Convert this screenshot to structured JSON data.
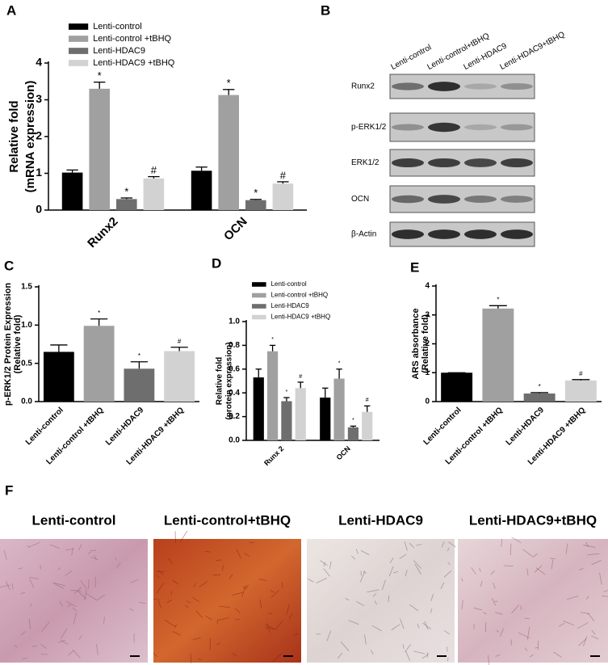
{
  "panel_labels": [
    "A",
    "B",
    "C",
    "D",
    "E",
    "F"
  ],
  "chart_data": [
    {
      "type": "bar",
      "y_label": [
        "Relative fold",
        "(mRNA expression)"
      ],
      "categories": [
        "Runx2",
        "OCN"
      ],
      "series": [
        {
          "name": "Lenti-control",
          "color": "#000000",
          "values": [
            1.02,
            1.07
          ],
          "errors": [
            0.07,
            0.1
          ],
          "annotations": [
            null,
            null
          ]
        },
        {
          "name": "Lenti-control +tBHQ",
          "color": "#a0a0a0",
          "values": [
            3.3,
            3.13
          ],
          "errors": [
            0.18,
            0.15
          ],
          "annotations": [
            "*",
            "*"
          ]
        },
        {
          "name": "Lenti-HDAC9",
          "color": "#6e6e6e",
          "values": [
            0.3,
            0.27
          ],
          "errors": [
            0.03,
            0.02
          ],
          "annotations": [
            "*",
            "*"
          ]
        },
        {
          "name": "Lenti-HDAC9 +tBHQ",
          "color": "#d2d2d2",
          "values": [
            0.86,
            0.72
          ],
          "errors": [
            0.05,
            0.05
          ],
          "annotations": [
            "#",
            "#"
          ]
        }
      ],
      "ylim": [
        0,
        4
      ],
      "yticks": [
        0,
        1,
        2,
        3,
        4
      ],
      "legend": "top-left"
    },
    {
      "type": "bar",
      "y_label": [
        "p-ERK1/2 Protein Expression",
        "(Relative fold)"
      ],
      "categories": [
        "Lenti-control",
        "Lenti-control +tBHQ",
        "Lenti-HDAC9",
        "Lenti-HDAC9 +tBHQ"
      ],
      "values": [
        0.65,
        0.99,
        0.43,
        0.66
      ],
      "errors": [
        0.09,
        0.09,
        0.09,
        0.05
      ],
      "colors": [
        "#000000",
        "#a0a0a0",
        "#6e6e6e",
        "#d2d2d2"
      ],
      "annotations": [
        null,
        "*",
        "*",
        "#"
      ],
      "ylim": [
        0,
        1.5
      ],
      "yticks": [
        {
          "value": 0,
          "label": "0.0"
        },
        0.5,
        {
          "value": 1,
          "label": "1.0"
        },
        1.5
      ]
    },
    {
      "type": "bar",
      "y_label": [
        "Relative fold",
        "(protein expression)"
      ],
      "categories": [
        "Runx 2",
        "OCN"
      ],
      "series": [
        {
          "name": "Lenti-control",
          "color": "#000000",
          "values": [
            0.53,
            0.36
          ],
          "errors": [
            0.07,
            0.08
          ],
          "annotations": [
            null,
            null
          ]
        },
        {
          "name": "Lenti-control +tBHQ",
          "color": "#a0a0a0",
          "values": [
            0.75,
            0.52
          ],
          "errors": [
            0.05,
            0.08
          ],
          "annotations": [
            "*",
            "*"
          ]
        },
        {
          "name": "Lenti-HDAC9",
          "color": "#6e6e6e",
          "values": [
            0.33,
            0.11
          ],
          "errors": [
            0.03,
            0.01
          ],
          "annotations": [
            "*",
            "*"
          ]
        },
        {
          "name": "Lenti-HDAC9 +tBHQ",
          "color": "#d2d2d2",
          "values": [
            0.44,
            0.24
          ],
          "errors": [
            0.05,
            0.05
          ],
          "annotations": [
            "#",
            "#"
          ]
        }
      ],
      "ylim": [
        0,
        1
      ],
      "yticks": [
        {
          "value": 0,
          "label": "0.0"
        },
        0.2,
        0.4,
        0.6,
        0.8,
        {
          "value": 1,
          "label": "1.0"
        }
      ],
      "legend": "top-left"
    },
    {
      "type": "bar",
      "y_label": [
        "ARS absorbance",
        "(Relative fold)"
      ],
      "categories": [
        "Lenti-control",
        "Lenti-control +tBHQ",
        "Lenti-HDAC9",
        "Lenti-HDAC9 +tBHQ"
      ],
      "values": [
        1.0,
        3.22,
        0.28,
        0.73
      ],
      "errors": [
        0,
        0.1,
        0.03,
        0.03
      ],
      "colors": [
        "#000000",
        "#a0a0a0",
        "#6e6e6e",
        "#d2d2d2"
      ],
      "annotations": [
        null,
        "*",
        "*",
        "#"
      ],
      "ylim": [
        0,
        4
      ],
      "yticks": [
        0,
        1,
        2,
        3,
        4
      ]
    }
  ],
  "blot": {
    "lanes": [
      "Lenti-control",
      "Lenti-control+tBHQ",
      "Lenti-HDAC9",
      "Lenti-HDAC9+tBHQ"
    ],
    "rows": [
      "Runx2",
      "p-ERK1/2",
      "ERK1/2",
      "OCN",
      "β-Actin"
    ]
  },
  "images": [
    "Lenti-control",
    "Lenti-control+tBHQ",
    "Lenti-HDAC9",
    "Lenti-HDAC9+tBHQ"
  ]
}
